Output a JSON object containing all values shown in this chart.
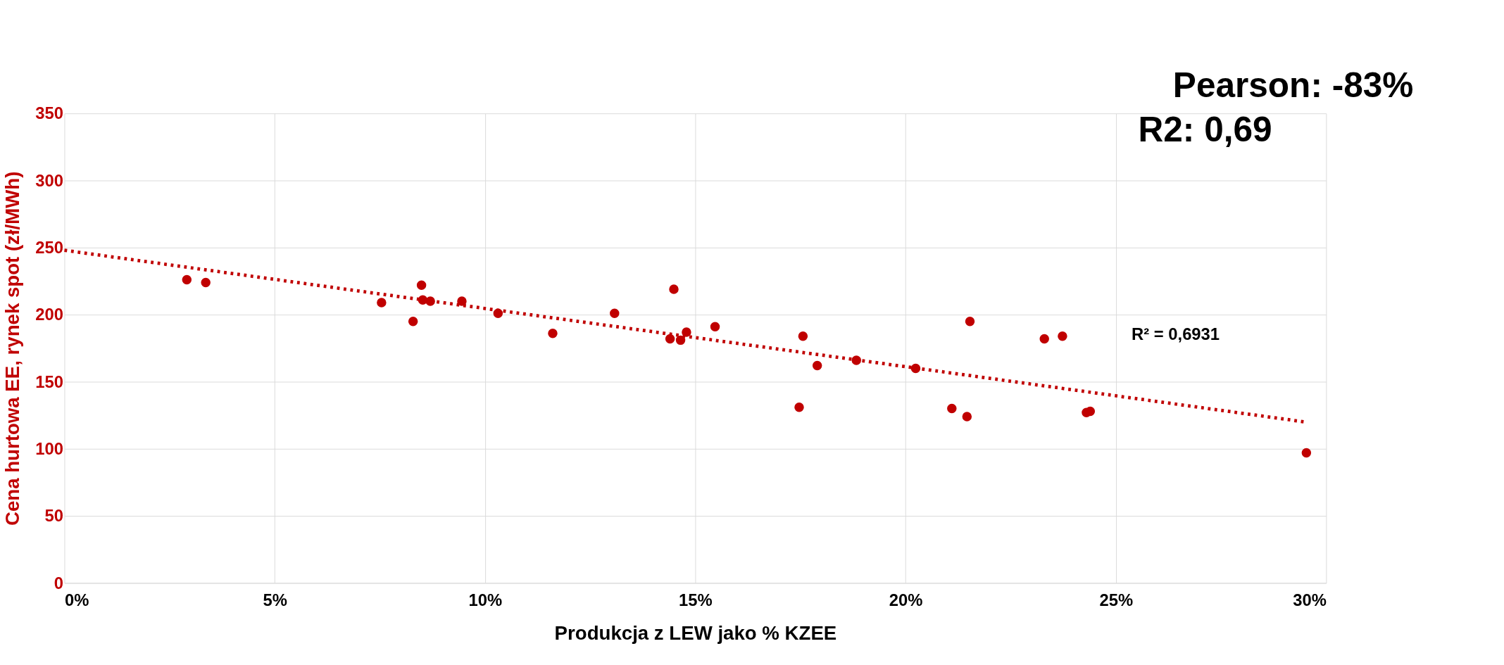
{
  "chart_data": {
    "type": "scatter",
    "xlabel": "Produkcja z LEW jako % KZEE",
    "ylabel": "Cena hurtowa EE, rynek spot (zł/MWh)",
    "xlim": [
      0,
      30
    ],
    "xticks": [
      {
        "value": 0,
        "label": "0%"
      },
      {
        "value": 5,
        "label": "5%"
      },
      {
        "value": 10,
        "label": "10%"
      },
      {
        "value": 15,
        "label": "15%"
      },
      {
        "value": 20,
        "label": "20%"
      },
      {
        "value": 25,
        "label": "25%"
      },
      {
        "value": 30,
        "label": "30%"
      }
    ],
    "ylim": [
      0,
      350
    ],
    "yticks": [
      0,
      50,
      100,
      150,
      200,
      250,
      300,
      350
    ],
    "grid": true,
    "series": [
      {
        "marker": "circle",
        "color": "#c00000",
        "x": [
          2.91,
          3.36,
          7.54,
          8.29,
          8.49,
          8.52,
          8.7,
          9.45,
          10.31,
          11.61,
          13.08,
          14.49,
          14.4,
          14.65,
          14.79,
          15.47,
          17.56,
          17.47,
          17.9,
          18.83,
          20.24,
          21.1,
          21.46,
          21.53,
          23.3,
          23.73,
          24.3,
          24.39,
          29.53
        ],
        "values": [
          226,
          224,
          209,
          195,
          222,
          211,
          210,
          210,
          201,
          186,
          201,
          219,
          182,
          181,
          187,
          191,
          184,
          131,
          162,
          166,
          160,
          130,
          124,
          195,
          182,
          184,
          127,
          128,
          97
        ]
      },
      {
        "type": "line",
        "color": "#c00000",
        "line_style": "dotted",
        "x": [
          0,
          29.5
        ],
        "values": [
          248,
          120
        ]
      }
    ],
    "annotations": [
      "Pearson: -83%",
      "R2: 0,69",
      "R² = 0,6931"
    ]
  }
}
